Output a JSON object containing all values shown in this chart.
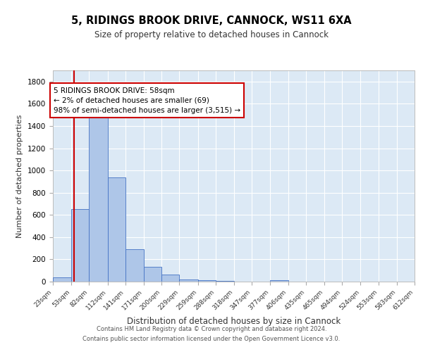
{
  "title": "5, RIDINGS BROOK DRIVE, CANNOCK, WS11 6XA",
  "subtitle": "Size of property relative to detached houses in Cannock",
  "xlabel": "Distribution of detached houses by size in Cannock",
  "ylabel": "Number of detached properties",
  "bins": [
    "23sqm",
    "53sqm",
    "82sqm",
    "112sqm",
    "141sqm",
    "171sqm",
    "200sqm",
    "229sqm",
    "259sqm",
    "288sqm",
    "318sqm",
    "347sqm",
    "377sqm",
    "406sqm",
    "435sqm",
    "465sqm",
    "494sqm",
    "524sqm",
    "553sqm",
    "583sqm",
    "612sqm"
  ],
  "counts": [
    40,
    650,
    1480,
    940,
    290,
    130,
    63,
    22,
    10,
    5,
    3,
    2,
    12,
    0,
    0,
    0,
    0,
    0,
    0,
    0
  ],
  "bar_color": "#aec6e8",
  "bar_edge_color": "#4472c4",
  "property_line_x": 58,
  "bin_edges_sqm": [
    23,
    53,
    82,
    112,
    141,
    171,
    200,
    229,
    259,
    288,
    318,
    347,
    377,
    406,
    435,
    465,
    494,
    524,
    553,
    583,
    612
  ],
  "annotation_text": "5 RIDINGS BROOK DRIVE: 58sqm\n← 2% of detached houses are smaller (69)\n98% of semi-detached houses are larger (3,515) →",
  "footer_line1": "Contains HM Land Registry data © Crown copyright and database right 2024.",
  "footer_line2": "Contains public sector information licensed under the Open Government Licence v3.0.",
  "ylim": [
    0,
    1900
  ],
  "fig_bg_color": "#ffffff",
  "plot_bg_color": "#dce9f5",
  "red_line_color": "#cc0000",
  "annotation_box_color": "#ffffff",
  "annotation_box_edge_color": "#cc0000",
  "grid_color": "#ffffff",
  "tick_label_color": "#333333"
}
